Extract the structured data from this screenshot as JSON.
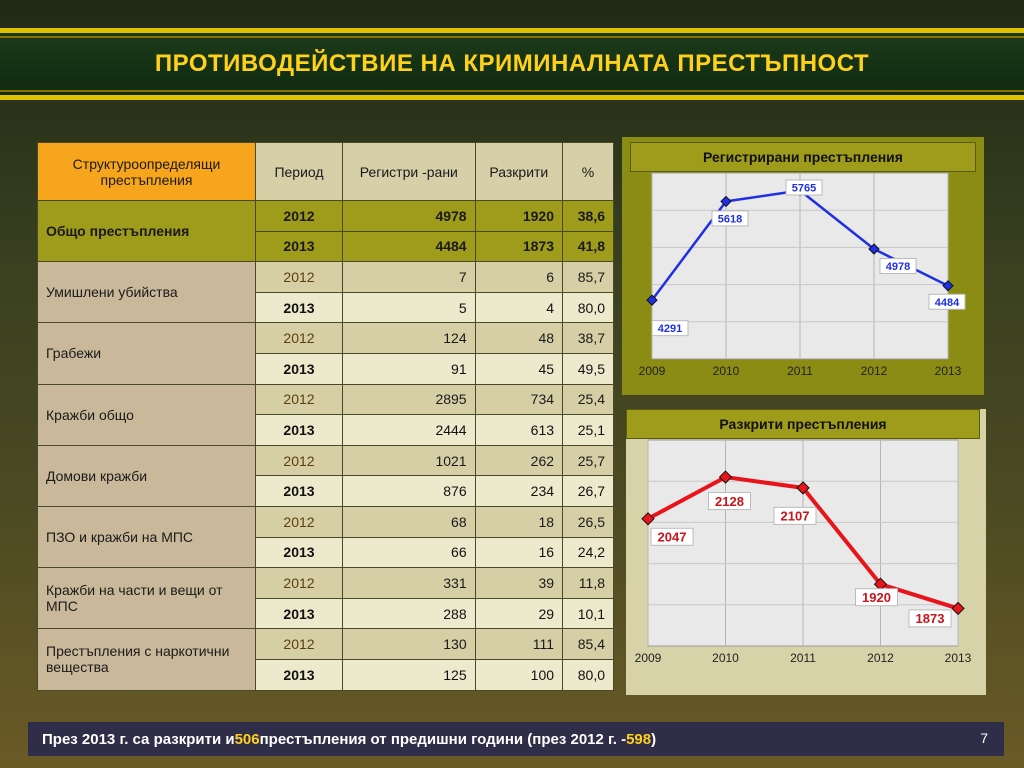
{
  "title": "ПРОТИВОДЕЙСТВИЕ НА КРИМИНАЛНАТА ПРЕСТЪПНОСТ",
  "table": {
    "headers": [
      "Структуроопределящи престъпления",
      "Период",
      "Регистри -рани",
      "Разкрити",
      "%"
    ],
    "groups": [
      {
        "category": "Общо престъпления",
        "rows": [
          [
            "2012",
            "4978",
            "1920",
            "38,6"
          ],
          [
            "2013",
            "4484",
            "1873",
            "41,8"
          ]
        ]
      },
      {
        "category": "Умишлени убийства",
        "rows": [
          [
            "2012",
            "7",
            "6",
            "85,7"
          ],
          [
            "2013",
            "5",
            "4",
            "80,0"
          ]
        ]
      },
      {
        "category": "Грабежи",
        "rows": [
          [
            "2012",
            "124",
            "48",
            "38,7"
          ],
          [
            "2013",
            "91",
            "45",
            "49,5"
          ]
        ]
      },
      {
        "category": "Кражби общо",
        "rows": [
          [
            "2012",
            "2895",
            "734",
            "25,4"
          ],
          [
            "2013",
            "2444",
            "613",
            "25,1"
          ]
        ]
      },
      {
        "category": "Домови  кражби",
        "rows": [
          [
            "2012",
            "1021",
            "262",
            "25,7"
          ],
          [
            "2013",
            "876",
            "234",
            "26,7"
          ]
        ]
      },
      {
        "category": "ПЗО и кражби на МПС",
        "rows": [
          [
            "2012",
            "68",
            "18",
            "26,5"
          ],
          [
            "2013",
            "66",
            "16",
            "24,2"
          ]
        ]
      },
      {
        "category": "Кражби на части и вещи от МПС",
        "rows": [
          [
            "2012",
            "331",
            "39",
            "11,8"
          ],
          [
            "2013",
            "288",
            "29",
            "10,1"
          ]
        ]
      },
      {
        "category": "Престъпления с наркотични вещества",
        "rows": [
          [
            "2012",
            "130",
            "111",
            "85,4"
          ],
          [
            "2013",
            "125",
            "100",
            "80,0"
          ]
        ]
      }
    ]
  },
  "chart_data": [
    {
      "type": "line",
      "title": "Регистрирани престъпления",
      "x": [
        "2009",
        "2010",
        "2011",
        "2012",
        "2013"
      ],
      "series": [
        {
          "values": [
            4291,
            5618,
            5765,
            4978,
            4484
          ]
        }
      ],
      "ylim": [
        3500,
        6000
      ],
      "grid": true,
      "color": "#1f2fe6"
    },
    {
      "type": "line",
      "title": "Разкрити престъпления",
      "x": [
        "2009",
        "2010",
        "2011",
        "2012",
        "2013"
      ],
      "series": [
        {
          "values": [
            2047,
            2128,
            2107,
            1920,
            1873
          ]
        }
      ],
      "ylim": [
        1800,
        2200
      ],
      "grid": true,
      "color": "#e8141b"
    }
  ],
  "footer": {
    "text_a": "През 2013 г. са разкрити и ",
    "highlight_a": "506",
    "text_b": " престъпления от предишни години (през 2012 г.  -  ",
    "highlight_b": "598",
    "text_c": ")",
    "page": "7"
  }
}
